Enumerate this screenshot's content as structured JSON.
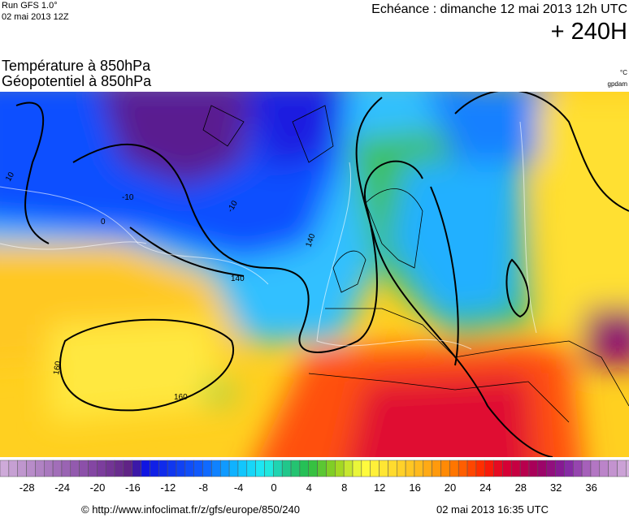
{
  "header": {
    "run": "Run GFS 1.0°",
    "run_date": "02 mai 2013 12Z",
    "valid": "Echéance : dimanche 12 mai 2013 12h UTC",
    "lead": "+ 240H"
  },
  "titles": {
    "temperature": "Température à 850hPa",
    "geopotential": "Géopotentiel à 850hPa",
    "temp_unit": "°C",
    "geo_unit": "gpdam"
  },
  "map": {
    "contour_labels": [
      "10",
      "-10",
      "-10",
      "0",
      "140",
      "140",
      "160",
      "160"
    ]
  },
  "colorbar": {
    "ticks": [
      -28,
      -24,
      -20,
      -16,
      -12,
      -8,
      -4,
      0,
      4,
      8,
      12,
      16,
      20,
      24,
      28,
      32,
      36
    ]
  },
  "footer": {
    "source": "© http://www.infoclimat.fr/z/gfs/europe/850/240",
    "generated": "02 mai 2013 16:35 UTC"
  }
}
